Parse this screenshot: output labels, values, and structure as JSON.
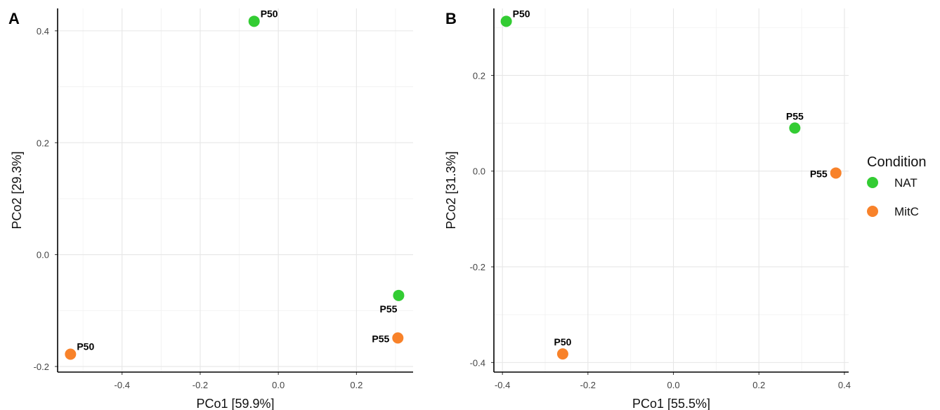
{
  "chart_data": [
    {
      "type": "scatter",
      "panel": "A",
      "xlabel": "PCo1 [59.9%]",
      "ylabel": "PCo2 [29.3%]",
      "xlim": [
        -0.565,
        0.345
      ],
      "ylim": [
        -0.21,
        0.44
      ],
      "x_ticks": [
        -0.4,
        -0.2,
        0.0,
        0.2
      ],
      "x_tick_labels": [
        "-0.4",
        "-0.2",
        "0.0",
        "0.2"
      ],
      "y_ticks": [
        -0.2,
        0.0,
        0.2,
        0.4
      ],
      "y_tick_labels": [
        "-0.2",
        "0.0",
        "0.2",
        "0.4"
      ],
      "grid": true,
      "points": [
        {
          "label": "P50",
          "condition": "NAT",
          "x": -0.062,
          "y": 0.417,
          "label_side": "top-right"
        },
        {
          "label": "P55",
          "condition": "NAT",
          "x": 0.308,
          "y": -0.073,
          "label_side": "bottom-left"
        },
        {
          "label": "P55",
          "condition": "MitC",
          "x": 0.306,
          "y": -0.149,
          "label_side": "left"
        },
        {
          "label": "P50",
          "condition": "MitC",
          "x": -0.532,
          "y": -0.178,
          "label_side": "top-right"
        }
      ]
    },
    {
      "type": "scatter",
      "panel": "B",
      "xlabel": "PCo1 [55.5%]",
      "ylabel": "PCo2 [31.3%]",
      "xlim": [
        -0.42,
        0.41
      ],
      "ylim": [
        -0.42,
        0.34
      ],
      "x_ticks": [
        -0.4,
        -0.2,
        0.0,
        0.2,
        0.4
      ],
      "x_tick_labels": [
        "-0.4",
        "-0.2",
        "0.0",
        "0.2",
        "0.4"
      ],
      "y_ticks": [
        -0.4,
        -0.2,
        0.0,
        0.2
      ],
      "y_tick_labels": [
        "-0.4",
        "-0.2",
        "0.0",
        "0.2"
      ],
      "grid": true,
      "points": [
        {
          "label": "P50",
          "condition": "NAT",
          "x": -0.391,
          "y": 0.313,
          "label_side": "top-right"
        },
        {
          "label": "P55",
          "condition": "NAT",
          "x": 0.284,
          "y": 0.09,
          "label_side": "top"
        },
        {
          "label": "P55",
          "condition": "MitC",
          "x": 0.38,
          "y": -0.004,
          "label_side": "left"
        },
        {
          "label": "P50",
          "condition": "MitC",
          "x": -0.259,
          "y": -0.382,
          "label_side": "top"
        }
      ]
    }
  ],
  "legend": {
    "title": "Condition",
    "placement": "right",
    "items": [
      {
        "name": "NAT",
        "color": "#33cc33"
      },
      {
        "name": "MitC",
        "color": "#f8822a"
      }
    ]
  }
}
